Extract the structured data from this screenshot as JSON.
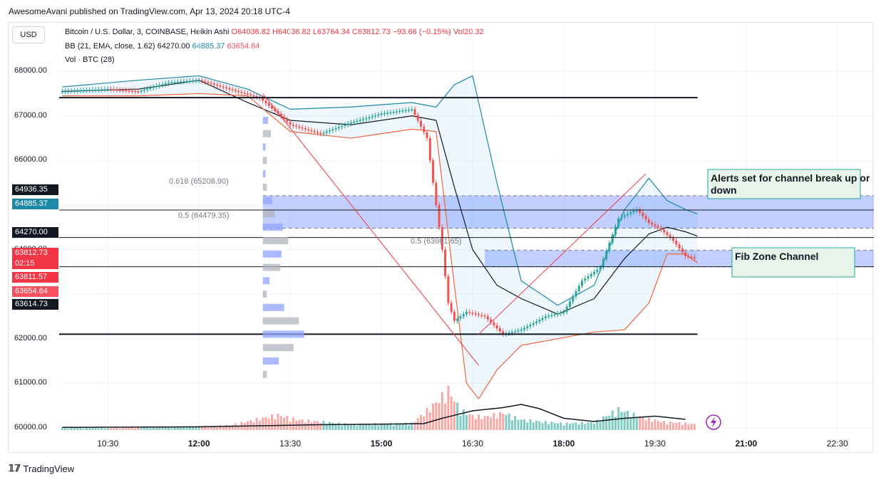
{
  "publisher_line": "AwesomeAvani published on TradingView.com, Apr 13, 2024 20:18 UTC-4",
  "currency_button": "USD",
  "legend": {
    "symbol": "Bitcoin / U.S. Dollar, 3, COINBASE, Heikin Ashi",
    "ohlc": "O64036.82 H64036.82 L63764.34 C63812.73 −93.66 (−0.15%)",
    "vol": "Vol20.32",
    "bb_label": "BB (21, EMA, close, 1.62)",
    "bb_basis": "64270.00",
    "bb_upper": "64885.37",
    "bb_lower": "63654.64",
    "vol_label": "Vol · BTC (28)"
  },
  "colors": {
    "up": "#26a69a",
    "down": "#ef5350",
    "bb_band": "#1e88a8",
    "bb_lower": "#f2653a",
    "fib_zone": "#8fa8ff",
    "note_box": "#e6f4ea"
  },
  "price_tags": [
    {
      "label": "64936.35",
      "color": "#131722"
    },
    {
      "label": "64885.37",
      "color": "#1e88a8"
    },
    {
      "label": "64270.00",
      "color": "#131722"
    },
    {
      "label": "63812.73",
      "color": "#f23645"
    },
    {
      "label": "02:15",
      "color": "#f23645"
    },
    {
      "label": "63811.57",
      "color": "#f23645"
    },
    {
      "label": "63654.64",
      "color": "#f7525f"
    },
    {
      "label": "63614.73",
      "color": "#131722"
    }
  ],
  "annotations": {
    "fib_top_upper": "0.618 (65208.90)",
    "fib_top_mid": "0.5 (64479.35)",
    "fib_lower_mid": "0.5 (63981.65)",
    "note_alerts": "Alerts set for  channel break up or down",
    "note_fib": "Fib Zone Channel"
  },
  "watermark": "TradingView",
  "chart_data": {
    "type": "line",
    "x_ticks": [
      "10:30",
      "12:00",
      "13:30",
      "15:00",
      "16:30",
      "18:00",
      "19:30",
      "21:00",
      "22:30"
    ],
    "x_ticks_major": [
      "12:00",
      "15:00",
      "18:00",
      "21:00"
    ],
    "y_ticks": [
      60000.0,
      61000.0,
      62000.0,
      63000.0,
      64000.0,
      65000.0,
      66000.0,
      67000.0,
      68000.0
    ],
    "y_tick_labels": [
      "60000.00",
      "61000.00",
      "62000.00",
      "",
      "64000.00",
      "",
      "66000.00",
      "67000.00",
      "68000.00"
    ],
    "ylim": [
      59950,
      68450
    ],
    "xlim_hours": [
      9.7,
      23.1
    ],
    "close_series": {
      "x": [
        9.75,
        10.5,
        11.0,
        11.5,
        12.0,
        12.5,
        13.0,
        13.3,
        13.5,
        14.0,
        14.5,
        15.0,
        15.5,
        15.75,
        15.9,
        16.0,
        16.1,
        16.2,
        16.4,
        16.7,
        17.0,
        17.3,
        17.7,
        18.0,
        18.3,
        18.6,
        18.9,
        19.2,
        19.4,
        19.6,
        19.8,
        20.0,
        20.2
      ],
      "y": [
        67550,
        67600,
        67550,
        67750,
        67800,
        67600,
        67400,
        67050,
        66800,
        66600,
        66850,
        67050,
        67150,
        66500,
        65000,
        64000,
        62800,
        62400,
        62600,
        62500,
        62100,
        62200,
        62500,
        62600,
        63300,
        63600,
        64700,
        64900,
        64600,
        64450,
        64200,
        63850,
        63810
      ]
    },
    "bb_upper_series": {
      "x": [
        9.75,
        11.0,
        12.0,
        12.8,
        13.5,
        14.5,
        15.5,
        15.9,
        16.2,
        16.5,
        16.9,
        17.3,
        17.9,
        18.5,
        19.0,
        19.4,
        19.7,
        20.0,
        20.2
      ],
      "y": [
        67650,
        67800,
        67900,
        67600,
        67150,
        67200,
        67300,
        67200,
        67700,
        67900,
        65500,
        63300,
        62750,
        63200,
        64900,
        65600,
        65100,
        64900,
        64800
      ]
    },
    "bb_basis_series": {
      "x": [
        9.75,
        11.0,
        12.0,
        12.8,
        13.5,
        14.5,
        15.5,
        15.9,
        16.2,
        16.5,
        16.9,
        17.3,
        17.9,
        18.5,
        19.0,
        19.4,
        19.7,
        20.0,
        20.2
      ],
      "y": [
        67550,
        67600,
        67800,
        67300,
        66900,
        66800,
        67000,
        66900,
        65400,
        64000,
        63200,
        62900,
        62550,
        62900,
        63800,
        64350,
        64500,
        64400,
        64300
      ]
    },
    "bb_lower_series": {
      "x": [
        9.75,
        11.0,
        12.0,
        12.8,
        13.5,
        14.5,
        15.5,
        15.9,
        16.2,
        16.4,
        16.6,
        16.9,
        17.3,
        17.9,
        18.5,
        19.0,
        19.4,
        19.7,
        20.0,
        20.2
      ],
      "y": [
        67450,
        67450,
        67500,
        67450,
        66650,
        66500,
        66700,
        66650,
        63200,
        61000,
        60650,
        61300,
        61850,
        62000,
        62150,
        62200,
        62800,
        63900,
        63900,
        63700
      ]
    },
    "horizontal_levels": [
      67410,
      64888,
      64270,
      63614,
      62100
    ],
    "fib_zones": [
      {
        "from": 64479.35,
        "to": 65208.9,
        "x_start": 13.05,
        "x_end": 23.1
      },
      {
        "from": 63614.73,
        "to": 63981.65,
        "x_start": 16.7,
        "x_end": 23.1
      }
    ],
    "diagonal_lines": [
      {
        "x": [
          13.05,
          16.6
        ],
        "y": [
          67500,
          61400
        ]
      },
      {
        "x": [
          16.6,
          19.35
        ],
        "y": [
          62100,
          65700
        ]
      }
    ],
    "volume": {
      "x": [
        9.75,
        10.5,
        11.5,
        12.5,
        13.3,
        13.6,
        14.5,
        15.5,
        15.9,
        16.1,
        16.3,
        16.5,
        16.7,
        17.0,
        17.3,
        17.6,
        18.0,
        18.5,
        18.9,
        19.3,
        19.6,
        20.0,
        20.2
      ],
      "y": [
        5,
        4,
        6,
        10,
        32,
        22,
        12,
        14,
        58,
        85,
        42,
        30,
        28,
        36,
        22,
        18,
        14,
        16,
        44,
        26,
        18,
        14,
        12
      ]
    },
    "volume_ma": {
      "x": [
        9.75,
        12.0,
        13.0,
        14.0,
        15.0,
        15.7,
        16.0,
        16.5,
        17.0,
        17.3,
        17.6,
        18.0,
        18.5,
        19.0,
        19.5,
        20.0
      ],
      "y": [
        5,
        6,
        8,
        10,
        11,
        12,
        22,
        36,
        42,
        48,
        40,
        22,
        16,
        22,
        26,
        20
      ]
    },
    "volume_ylim": [
      0,
      100
    ],
    "volume_profile": {
      "price": [
        66900,
        66600,
        66300,
        66000,
        65700,
        65400,
        65100,
        64800,
        64500,
        64200,
        63900,
        63600,
        63300,
        63000,
        62700,
        62400,
        62100,
        61800,
        61500,
        61200
      ],
      "volume": [
        8,
        12,
        4,
        6,
        4,
        6,
        14,
        18,
        30,
        38,
        28,
        26,
        10,
        6,
        32,
        54,
        62,
        46,
        24,
        6
      ]
    }
  }
}
